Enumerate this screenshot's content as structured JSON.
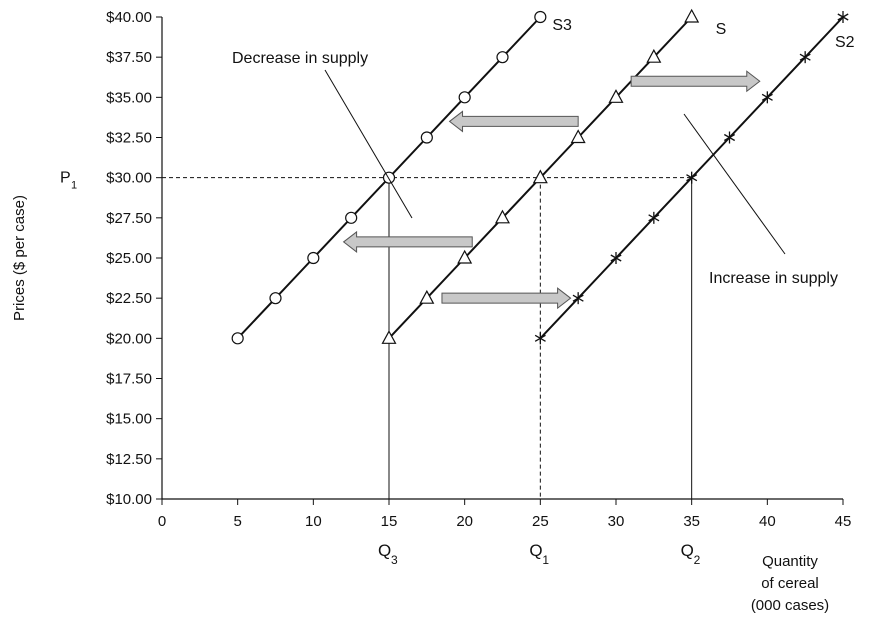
{
  "chart_data": {
    "type": "line",
    "ylabel": "Prices ($ per case)",
    "xlabel_lines": [
      "Quantity",
      "of cereal",
      "(000 cases)"
    ],
    "xlim": [
      0,
      45
    ],
    "ylim": [
      10,
      40
    ],
    "x_ticks": [
      0,
      5,
      10,
      15,
      20,
      25,
      30,
      35,
      40,
      45
    ],
    "x_tick_labels": [
      "0",
      "5",
      "10",
      "15",
      "20",
      "25",
      "30",
      "35",
      "40",
      "45"
    ],
    "y_ticks": [
      10,
      12.5,
      15,
      17.5,
      20,
      22.5,
      25,
      27.5,
      30,
      32.5,
      35,
      37.5,
      40
    ],
    "y_tick_labels": [
      "$10.00",
      "$12.50",
      "$15.00",
      "$17.50",
      "$20.00",
      "$22.50",
      "$25.00",
      "$27.50",
      "$30.00",
      "$32.50",
      "$35.00",
      "$37.50",
      "$40.00"
    ],
    "series": [
      {
        "name": "S3",
        "marker": "circle",
        "points": [
          [
            5,
            20
          ],
          [
            7.5,
            22.5
          ],
          [
            10,
            25
          ],
          [
            12.5,
            27.5
          ],
          [
            15,
            30
          ],
          [
            17.5,
            32.5
          ],
          [
            20,
            35
          ],
          [
            22.5,
            37.5
          ],
          [
            25,
            40
          ]
        ]
      },
      {
        "name": "S",
        "marker": "triangle",
        "points": [
          [
            15,
            20
          ],
          [
            17.5,
            22.5
          ],
          [
            20,
            25
          ],
          [
            22.5,
            27.5
          ],
          [
            25,
            30
          ],
          [
            27.5,
            32.5
          ],
          [
            30,
            35
          ],
          [
            32.5,
            37.5
          ],
          [
            35,
            40
          ]
        ]
      },
      {
        "name": "S2",
        "marker": "star",
        "points": [
          [
            25,
            20
          ],
          [
            27.5,
            22.5
          ],
          [
            30,
            25
          ],
          [
            32.5,
            27.5
          ],
          [
            35,
            30
          ],
          [
            37.5,
            32.5
          ],
          [
            40,
            35
          ],
          [
            42.5,
            37.5
          ],
          [
            45,
            40
          ]
        ]
      }
    ],
    "reference": {
      "price_label": "P",
      "price_sub": "1",
      "price": 30,
      "quantity_marks": [
        {
          "label": "Q",
          "sub": "3",
          "x": 15,
          "style": "solid"
        },
        {
          "label": "Q",
          "sub": "1",
          "x": 25,
          "style": "dashed"
        },
        {
          "label": "Q",
          "sub": "2",
          "x": 35,
          "style": "solid"
        }
      ]
    },
    "annotations": {
      "decrease": "Decrease in supply",
      "increase": "Increase in supply"
    },
    "arrows": [
      {
        "from": [
          27.5,
          33.5
        ],
        "to": [
          19,
          33.5
        ],
        "direction": "left"
      },
      {
        "from": [
          20.5,
          26
        ],
        "to": [
          12,
          26
        ],
        "direction": "left"
      },
      {
        "from": [
          18.5,
          22.5
        ],
        "to": [
          27,
          22.5
        ],
        "direction": "right"
      },
      {
        "from": [
          31,
          36
        ],
        "to": [
          39.5,
          36
        ],
        "direction": "right"
      }
    ]
  }
}
